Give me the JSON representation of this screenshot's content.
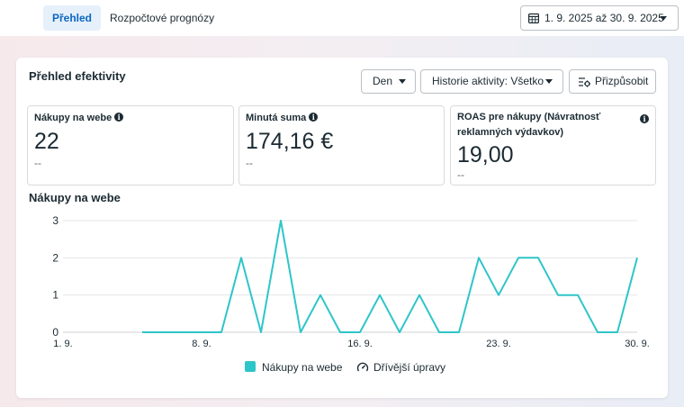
{
  "tabs": [
    {
      "label": "Přehled",
      "active": true
    },
    {
      "label": "Rozpočtové prognózy",
      "active": false
    }
  ],
  "date_range": {
    "label": "1. 9. 2025 až 30. 9. 2025",
    "icon": "calendar-icon"
  },
  "card": {
    "title": "Přehled efektivity",
    "controls": {
      "granularity": "Den",
      "history": "Historie aktivity: Všetko",
      "customize": "Přizpůsobit"
    }
  },
  "metrics": [
    {
      "label": "Nákupy na webe",
      "value": "22",
      "sub": "--"
    },
    {
      "label": "Minutá suma",
      "value": "174,16 €",
      "sub": "--"
    },
    {
      "label": "ROAS pre nákupy (Návratnosť reklamných výdavkov)",
      "value": "19,00",
      "sub": "--"
    }
  ],
  "chart_title": "Nákupy na webe",
  "legend": {
    "series": "Nákupy na webe",
    "earlier": "Dřívější úpravy"
  },
  "colors": {
    "accent": "#0a66c2",
    "series": "#2ec5c9"
  },
  "chart_data": {
    "type": "line",
    "title": "Nákupy na webe",
    "x_tick_labels": [
      "1. 9.",
      "8. 9.",
      "16. 9.",
      "23. 9.",
      "30. 9."
    ],
    "y_tick_labels": [
      "0",
      "1",
      "2",
      "3"
    ],
    "ylim": [
      0,
      3
    ],
    "grid": true,
    "legend_position": "bottom",
    "series": [
      {
        "name": "Nákupy na webe",
        "x": [
          5,
          6,
          7,
          8,
          9,
          10,
          11,
          12,
          13,
          14,
          15,
          16,
          17,
          18,
          19,
          20,
          21,
          22,
          23,
          24,
          25,
          26,
          27,
          28,
          29,
          30
        ],
        "values": [
          0,
          0,
          0,
          0,
          0,
          2,
          0,
          3,
          0,
          1,
          0,
          0,
          1,
          0,
          1,
          0,
          0,
          2,
          1,
          2,
          2,
          1,
          1,
          0,
          0,
          2
        ]
      }
    ]
  }
}
